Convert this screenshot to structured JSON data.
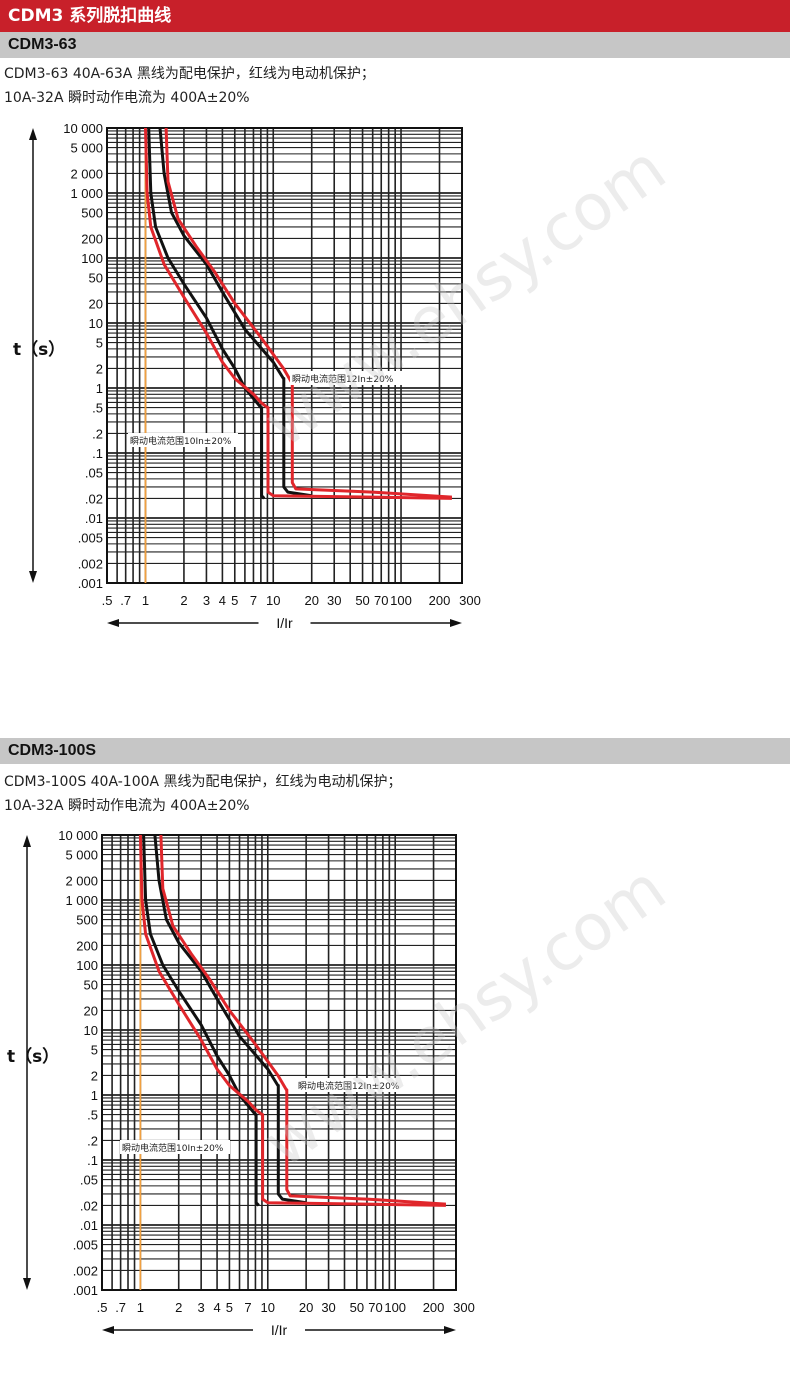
{
  "header": {
    "title": "CDM3 系列脱扣曲线"
  },
  "sections": [
    {
      "name": "CDM3-63",
      "line1": "CDM3-63    40A-63A 黑线为配电保护，红线为电动机保护；",
      "line2": "10A-32A 瞬时动作电流为 400A±20%"
    },
    {
      "name": "CDM3-100S",
      "line1": "CDM3-100S    40A-100A 黑线为配电保护，红线为电动机保护；",
      "line2": "10A-32A 瞬时动作电流为 400A±20%"
    }
  ],
  "watermark": "www.ehsy.com",
  "chart_data": [
    {
      "type": "line",
      "title": "CDM3-63",
      "xlabel": "I/Ir",
      "ylabel": "t（s）",
      "xscale": "log",
      "yscale": "log",
      "xlim": [
        0.5,
        300
      ],
      "ylim": [
        0.001,
        10000
      ],
      "xticks": [
        ".5",
        ".7",
        "1",
        "2",
        "3",
        "4",
        "5",
        "7",
        "10",
        "20",
        "30",
        "50",
        "70",
        "100",
        "200",
        "300"
      ],
      "yticks": [
        "10 000",
        "5 000",
        "2 000",
        "1 000",
        "500",
        "200",
        "100",
        "50",
        "20",
        "10",
        "5",
        "2",
        "1",
        ".5",
        ".2",
        ".1",
        ".05",
        ".02",
        ".01",
        ".005",
        ".002",
        ".001"
      ],
      "reference_line_x": 1,
      "annotations": [
        "瞬动电流范围10In±20%",
        "瞬动电流范围12In±20%"
      ],
      "colors": {
        "black": "#111111",
        "red": "#e0262b",
        "reference": "#f0a040"
      },
      "series": [
        {
          "color": "black",
          "points": [
            [
              1.06,
              10000
            ],
            [
              1.1,
              1000
            ],
            [
              1.2,
              300
            ],
            [
              1.5,
              100
            ],
            [
              2,
              40
            ],
            [
              3,
              12
            ],
            [
              4,
              4
            ],
            [
              5,
              2
            ],
            [
              6,
              1
            ],
            [
              8,
              0.5
            ],
            [
              8.1,
              0.5
            ],
            [
              8.1,
              0.022
            ],
            [
              8.5,
              0.02
            ]
          ]
        },
        {
          "color": "black",
          "points": [
            [
              1.3,
              10000
            ],
            [
              1.4,
              2000
            ],
            [
              1.6,
              500
            ],
            [
              2,
              220
            ],
            [
              3,
              80
            ],
            [
              4,
              30
            ],
            [
              6,
              8
            ],
            [
              10,
              2.5
            ],
            [
              12,
              1.4
            ],
            [
              12.1,
              1.4
            ],
            [
              12.1,
              0.03
            ],
            [
              13,
              0.025
            ],
            [
              20,
              0.022
            ]
          ]
        },
        {
          "color": "red",
          "points": [
            [
              1.0,
              10000
            ],
            [
              1.03,
              1000
            ],
            [
              1.1,
              300
            ],
            [
              1.4,
              80
            ],
            [
              2,
              25
            ],
            [
              3,
              7
            ],
            [
              4,
              2.5
            ],
            [
              5,
              1.4
            ],
            [
              7,
              0.8
            ],
            [
              8,
              0.6
            ],
            [
              9,
              0.5
            ],
            [
              9.1,
              0.5
            ],
            [
              9.1,
              0.025
            ],
            [
              10,
              0.022
            ],
            [
              60,
              0.021
            ],
            [
              250,
              0.02
            ]
          ]
        },
        {
          "color": "red",
          "points": [
            [
              1.45,
              10000
            ],
            [
              1.5,
              1500
            ],
            [
              1.8,
              400
            ],
            [
              2.5,
              150
            ],
            [
              3.5,
              60
            ],
            [
              5,
              20
            ],
            [
              8,
              6
            ],
            [
              12,
              2
            ],
            [
              14,
              1.2
            ],
            [
              14.1,
              1.2
            ],
            [
              14.1,
              0.035
            ],
            [
              15,
              0.028
            ],
            [
              60,
              0.025
            ],
            [
              250,
              0.021
            ]
          ]
        }
      ]
    },
    {
      "type": "line",
      "title": "CDM3-100S",
      "xlabel": "I/Ir",
      "ylabel": "t（s）",
      "xscale": "log",
      "yscale": "log",
      "xlim": [
        0.5,
        300
      ],
      "ylim": [
        0.001,
        10000
      ],
      "xticks": [
        ".5",
        ".7",
        "1",
        "2",
        "3",
        "4",
        "5",
        "7",
        "10",
        "20",
        "30",
        "50",
        "70",
        "100",
        "200",
        "300"
      ],
      "yticks": [
        "10 000",
        "5 000",
        "2 000",
        "1 000",
        "500",
        "200",
        "100",
        "50",
        "20",
        "10",
        "5",
        "2",
        "1",
        ".5",
        ".2",
        ".1",
        ".05",
        ".02",
        ".01",
        ".005",
        ".002",
        ".001"
      ],
      "reference_line_x": 1,
      "annotations": [
        "瞬动电流范围10In±20%",
        "瞬动电流范围12In±20%"
      ],
      "colors": {
        "black": "#111111",
        "red": "#e0262b",
        "reference": "#f0a040"
      },
      "series": [
        {
          "color": "black",
          "points": [
            [
              1.06,
              10000
            ],
            [
              1.1,
              1000
            ],
            [
              1.2,
              300
            ],
            [
              1.5,
              100
            ],
            [
              2,
              40
            ],
            [
              3,
              12
            ],
            [
              4,
              4
            ],
            [
              5,
              2
            ],
            [
              6,
              1
            ],
            [
              8,
              0.5
            ],
            [
              8.1,
              0.5
            ],
            [
              8.1,
              0.022
            ],
            [
              8.5,
              0.02
            ]
          ]
        },
        {
          "color": "black",
          "points": [
            [
              1.3,
              10000
            ],
            [
              1.4,
              2000
            ],
            [
              1.6,
              500
            ],
            [
              2,
              220
            ],
            [
              3,
              80
            ],
            [
              4,
              30
            ],
            [
              6,
              8
            ],
            [
              10,
              2.5
            ],
            [
              12,
              1.4
            ],
            [
              12.1,
              1.4
            ],
            [
              12.1,
              0.03
            ],
            [
              13,
              0.025
            ],
            [
              20,
              0.022
            ]
          ]
        },
        {
          "color": "red",
          "points": [
            [
              1.0,
              10000
            ],
            [
              1.03,
              1000
            ],
            [
              1.1,
              300
            ],
            [
              1.4,
              80
            ],
            [
              2,
              25
            ],
            [
              3,
              7
            ],
            [
              4,
              2.5
            ],
            [
              5,
              1.4
            ],
            [
              7,
              0.8
            ],
            [
              8,
              0.6
            ],
            [
              9,
              0.5
            ],
            [
              9.1,
              0.5
            ],
            [
              9.1,
              0.025
            ],
            [
              10,
              0.022
            ],
            [
              60,
              0.021
            ],
            [
              250,
              0.02
            ]
          ]
        },
        {
          "color": "red",
          "points": [
            [
              1.45,
              10000
            ],
            [
              1.5,
              1500
            ],
            [
              1.8,
              400
            ],
            [
              2.5,
              150
            ],
            [
              3.5,
              60
            ],
            [
              5,
              20
            ],
            [
              8,
              6
            ],
            [
              12,
              2
            ],
            [
              14,
              1.2
            ],
            [
              14.1,
              1.2
            ],
            [
              14.1,
              0.035
            ],
            [
              15,
              0.028
            ],
            [
              60,
              0.025
            ],
            [
              250,
              0.021
            ]
          ]
        }
      ]
    }
  ]
}
